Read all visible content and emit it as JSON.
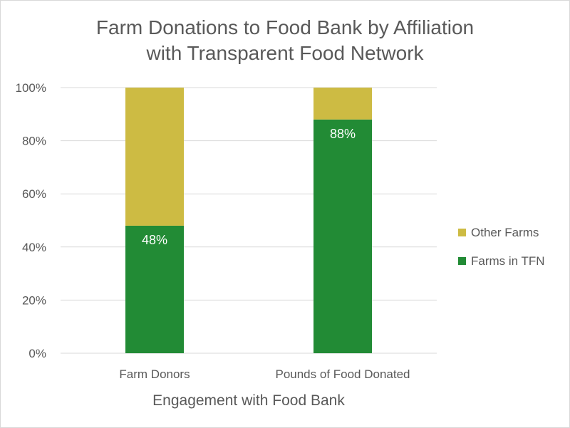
{
  "chart_data": {
    "type": "bar",
    "stacked": true,
    "title_line1": "Farm Donations to Food Bank by Affiliation",
    "title_line2": "with Transparent Food Network",
    "xlabel": "Engagement with Food Bank",
    "ylabel": "",
    "ylim": [
      0,
      100
    ],
    "yticks": [
      "0%",
      "20%",
      "40%",
      "60%",
      "80%",
      "100%"
    ],
    "categories": [
      "Farm Donors",
      "Pounds of Food Donated"
    ],
    "series": [
      {
        "name": "Farms in TFN",
        "values": [
          48,
          88
        ],
        "labels": [
          "48%",
          "88%"
        ],
        "color": "#228b35"
      },
      {
        "name": "Other Farms",
        "values": [
          52,
          12
        ],
        "color": "#cdbb43"
      }
    ],
    "legend_position": "right",
    "grid": true
  }
}
